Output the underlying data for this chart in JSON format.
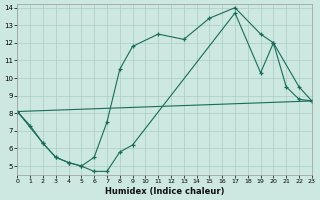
{
  "background_color": "#cce8e0",
  "grid_color": "#aaccC4",
  "line_color": "#1a6b5a",
  "xlabel": "Humidex (Indice chaleur)",
  "xlim": [
    0,
    23
  ],
  "ylim": [
    4.5,
    14.2
  ],
  "xticks": [
    0,
    1,
    2,
    3,
    4,
    5,
    6,
    7,
    8,
    9,
    10,
    11,
    12,
    13,
    14,
    15,
    16,
    17,
    18,
    19,
    20,
    21,
    22,
    23
  ],
  "yticks": [
    5,
    6,
    7,
    8,
    9,
    10,
    11,
    12,
    13,
    14
  ],
  "series1_x": [
    0,
    1,
    2,
    3,
    4,
    5,
    6,
    7,
    8,
    9,
    11,
    13,
    15,
    17,
    19,
    20,
    22,
    23
  ],
  "series1_y": [
    8.1,
    7.3,
    6.3,
    5.5,
    5.2,
    5.0,
    5.5,
    7.5,
    10.5,
    11.8,
    12.5,
    12.2,
    13.4,
    14.0,
    12.5,
    12.0,
    9.5,
    8.7
  ],
  "series2_x": [
    0,
    2,
    3,
    4,
    5,
    6,
    7,
    8,
    9,
    17,
    19,
    20,
    21,
    22,
    23
  ],
  "series2_y": [
    8.1,
    6.3,
    5.5,
    5.2,
    5.0,
    4.7,
    4.7,
    5.8,
    6.2,
    13.7,
    10.3,
    12.0,
    9.5,
    8.8,
    8.7
  ],
  "series3_x": [
    0,
    23
  ],
  "series3_y": [
    8.1,
    8.7
  ]
}
